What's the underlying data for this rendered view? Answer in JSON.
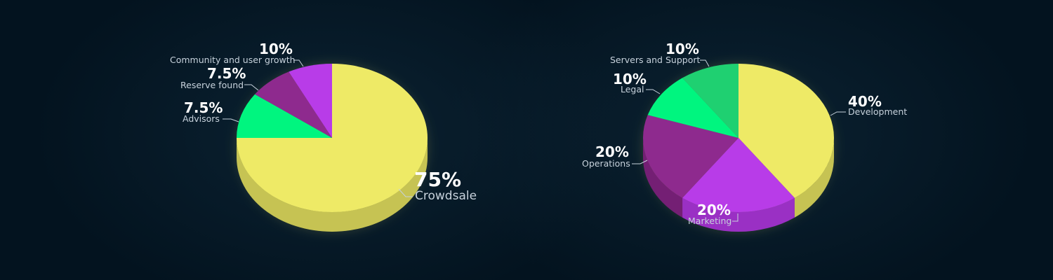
{
  "chart_data": [
    {
      "type": "pie",
      "title": "",
      "slices": [
        {
          "label": "Crowdsale",
          "value": 75,
          "percent_label": "75%",
          "color": "#eeea66",
          "side_color": "#c6c353"
        },
        {
          "label": "Advisors",
          "value": 7.5,
          "percent_label": "7.5%",
          "color": "#b83ce8",
          "side_color": "#9a30c4"
        },
        {
          "label": "Reserve found",
          "value": 7.5,
          "percent_label": "7.5%",
          "color": "#8e2a8e",
          "side_color": "#741f74"
        },
        {
          "label": "Community and user growth",
          "value": 10,
          "percent_label": "10%",
          "color": "#00f57f",
          "side_color": "#02c467"
        }
      ]
    },
    {
      "type": "pie",
      "title": "",
      "slices": [
        {
          "label": "Development",
          "value": 40,
          "percent_label": "40%",
          "color": "#eeea66",
          "side_color": "#c6c353"
        },
        {
          "label": "Marketing",
          "value": 20,
          "percent_label": "20%",
          "color": "#b83ce8",
          "side_color": "#9a30c4"
        },
        {
          "label": "Operations",
          "value": 20,
          "percent_label": "20%",
          "color": "#8e2a8e",
          "side_color": "#741f74"
        },
        {
          "label": "Legal",
          "value": 10,
          "percent_label": "10%",
          "color": "#00f57f",
          "side_color": "#02c467"
        },
        {
          "label": "Servers and Support",
          "value": 10,
          "percent_label": "10%",
          "color": "#1fd071",
          "side_color": "#17a85b"
        }
      ]
    }
  ]
}
